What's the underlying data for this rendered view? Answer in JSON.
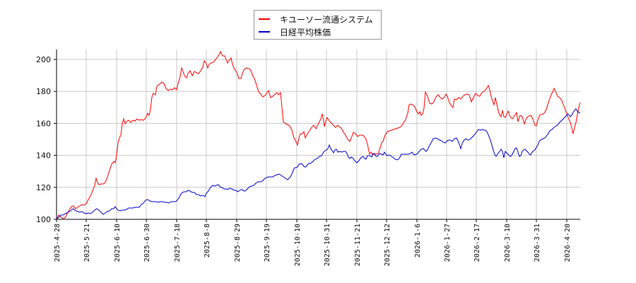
{
  "chart_data": {
    "type": "line",
    "title": "",
    "xlabel": "",
    "ylabel": "",
    "ylim": [
      100,
      207
    ],
    "grid": true,
    "legend_position": "top-center",
    "yticks": [
      100,
      120,
      140,
      160,
      180,
      200
    ],
    "xticks": [
      "2025-4-28",
      "2025-5-21",
      "2025-6-10",
      "2025-6-30",
      "2025-7-18",
      "2025-8-8",
      "2025-8-29",
      "2025-9-19",
      "2025-10-10",
      "2025-10-31",
      "2025-11-21",
      "2025-12-12",
      "2026-1-6",
      "2026-1-27",
      "2026-2-17",
      "2026-3-10",
      "2026-3-31",
      "2026-4-20"
    ],
    "x": [
      "2025-4-28",
      "2025-5-21",
      "2025-6-10",
      "2025-6-30",
      "2025-7-18",
      "2025-8-8",
      "2025-8-29",
      "2025-9-19",
      "2025-10-10",
      "2025-10-31",
      "2025-11-21",
      "2025-12-12",
      "2026-1-6",
      "2026-1-27",
      "2026-2-17",
      "2026-3-10",
      "2026-3-31",
      "2026-4-20"
    ],
    "series": [
      {
        "name": "キユーソー流通システム",
        "color": "#ff0000",
        "values": [
          100,
          110,
          130,
          163,
          182,
          190,
          197,
          178,
          155,
          157,
          150,
          140,
          168,
          175,
          181,
          165,
          165,
          162
        ]
      },
      {
        "name": "日経平均株価",
        "color": "#0000cc",
        "values": [
          100,
          106,
          106,
          111,
          112,
          120,
          119,
          127,
          133,
          144,
          138,
          139,
          146,
          149,
          160,
          151,
          148,
          167
        ]
      }
    ]
  },
  "legend": {
    "items": [
      {
        "label": "キユーソー流通システム",
        "color": "#ff0000"
      },
      {
        "label": "日経平均株価",
        "color": "#0000cc"
      }
    ]
  },
  "axis": {
    "y_labels": [
      "100",
      "120",
      "140",
      "160",
      "180",
      "200"
    ],
    "x_labels": [
      "2025-4-28",
      "2025-5-21",
      "2025-6-10",
      "2025-6-30",
      "2025-7-18",
      "2025-8-8",
      "2025-8-29",
      "2025-9-19",
      "2025-10-10",
      "2025-10-31",
      "2025-11-21",
      "2025-12-12",
      "2026-1-6",
      "2026-1-27",
      "2026-2-17",
      "2026-3-10",
      "2026-3-31",
      "2026-4-20"
    ]
  }
}
